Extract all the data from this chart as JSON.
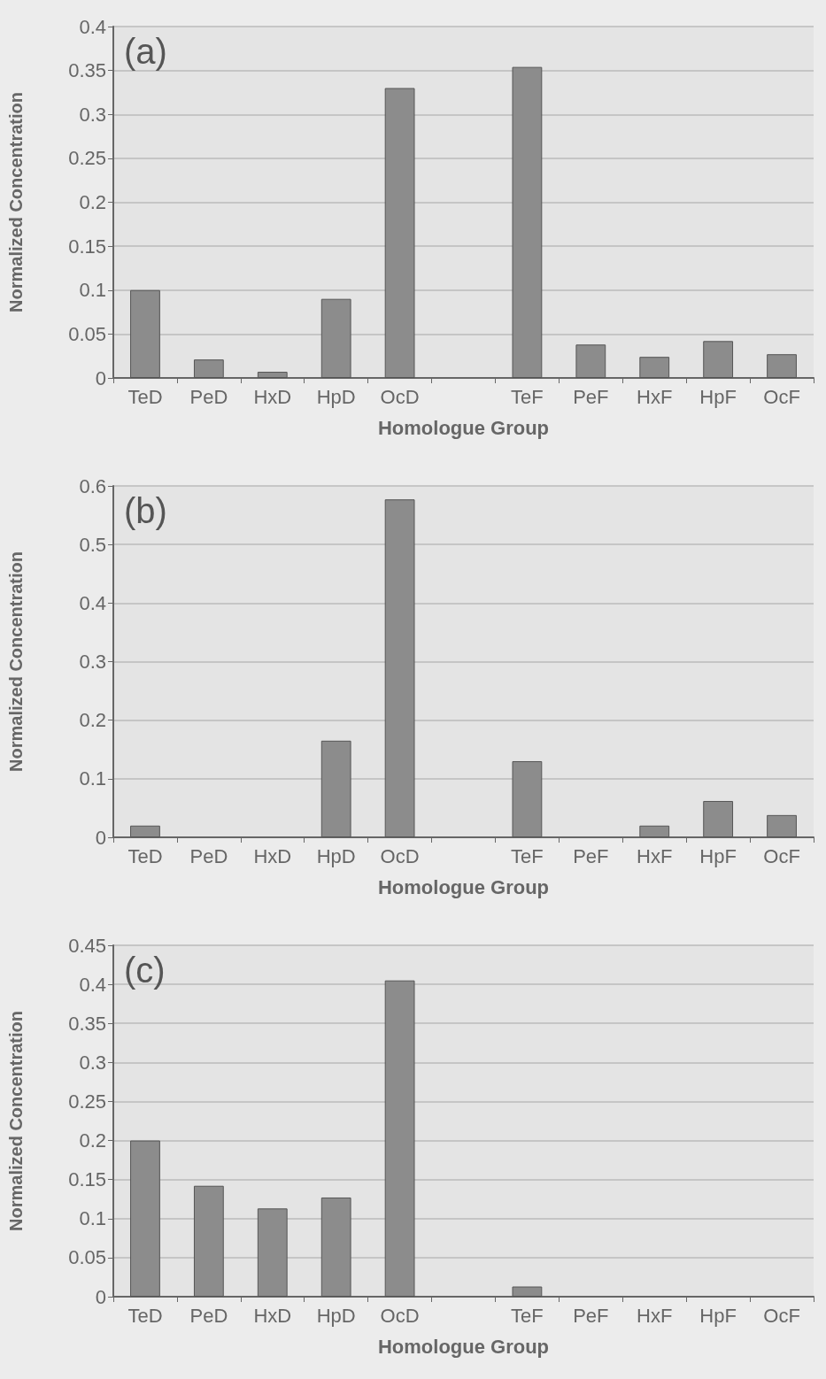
{
  "chart_data": [
    {
      "type": "bar",
      "categories": [
        "TeD",
        "PeD",
        "HxD",
        "HpD",
        "OcD",
        null,
        "TeF",
        "PeF",
        "HxF",
        "HpF",
        "OcF"
      ],
      "values": [
        0.1,
        0.021,
        0.007,
        0.09,
        0.33,
        null,
        0.354,
        0.038,
        0.024,
        0.042,
        0.027
      ],
      "color": "#8c8c8c",
      "xlabel": "Homologue Group",
      "ylabel": "Normalized Concentration",
      "annotations": [
        "(a)"
      ],
      "ylim": [
        0,
        0.4
      ],
      "yticks": [
        0,
        0.05,
        0.1,
        0.15,
        0.2,
        0.25,
        0.3,
        0.35,
        0.4
      ],
      "grid": "y"
    },
    {
      "type": "bar",
      "categories": [
        "TeD",
        "PeD",
        "HxD",
        "HpD",
        "OcD",
        null,
        "TeF",
        "PeF",
        "HxF",
        "HpF",
        "OcF"
      ],
      "values": [
        0.02,
        0,
        0,
        0.165,
        0.577,
        null,
        0.13,
        0,
        0.02,
        0.062,
        0.038
      ],
      "color": "#8c8c8c",
      "xlabel": "Homologue Group",
      "ylabel": "Normalized Concentration",
      "annotations": [
        "(b)"
      ],
      "ylim": [
        0,
        0.6
      ],
      "yticks": [
        0,
        0.1,
        0.2,
        0.3,
        0.4,
        0.5,
        0.6
      ],
      "grid": "y"
    },
    {
      "type": "bar",
      "categories": [
        "TeD",
        "PeD",
        "HxD",
        "HpD",
        "OcD",
        null,
        "TeF",
        "PeF",
        "HxF",
        "HpF",
        "OcF"
      ],
      "values": [
        0.2,
        0.142,
        0.113,
        0.127,
        0.405,
        null,
        0.013,
        0,
        0,
        0,
        0
      ],
      "color": "#8c8c8c",
      "xlabel": "Homologue Group",
      "ylabel": "Normalized Concentration",
      "annotations": [
        "(c)"
      ],
      "ylim": [
        0,
        0.45
      ],
      "yticks": [
        0,
        0.05,
        0.1,
        0.15,
        0.2,
        0.25,
        0.3,
        0.35,
        0.4,
        0.45
      ],
      "grid": "y"
    }
  ]
}
